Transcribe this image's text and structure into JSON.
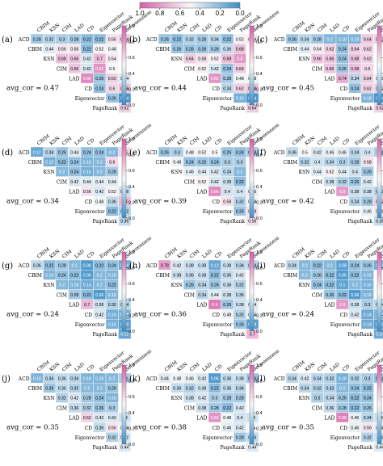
{
  "colors": {
    "high": "#d65ea8",
    "mid": "#f7f7f7",
    "low": "#3b8ec8"
  },
  "top_colorbar": {
    "ticks": [
      "1.0",
      "0.8",
      "0.6",
      "0.4",
      "0.2",
      "0.0"
    ]
  },
  "side_colorbar_ticks": [
    "1.0",
    "0.8",
    "0.6",
    "0.4",
    "0.2",
    "0.0"
  ],
  "chart_data": [
    {
      "label": "(a)",
      "avg_cor": "avg_cor = 0.47",
      "type": "heatmap",
      "columns": [
        "CBIM",
        "KSN",
        "CIM",
        "LAD",
        "CD",
        "Eigenvector",
        "PageRank",
        "Betweenness"
      ],
      "rows": [
        "ACD",
        "CBIM",
        "KSN",
        "CIM",
        "LAD",
        "CD",
        "Eigenvector",
        "PageRank"
      ],
      "values": [
        [
          0.28,
          0.32,
          0.3,
          0.28,
          0.22,
          0.22,
          0.56,
          0.64
        ],
        [
          null,
          0.44,
          0.56,
          0.56,
          0.22,
          0.52,
          0.48
        ],
        [
          null,
          null,
          0.68,
          0.66,
          0.42,
          0.7,
          0.54
        ],
        [
          null,
          null,
          null,
          0.66,
          0.42,
          0.82,
          0.5
        ],
        [
          null,
          null,
          null,
          null,
          0.86,
          0.26,
          0.62,
          0.44
        ],
        [
          null,
          null,
          null,
          null,
          null,
          0.24,
          0.6,
          0.66
        ],
        [
          null,
          null,
          null,
          null,
          null,
          null,
          0.26,
          0.04
        ],
        [
          null,
          null,
          null,
          null,
          null,
          null,
          null,
          0.62
        ]
      ]
    },
    {
      "label": "(b)",
      "avg_cor": "avg_cor = 0.44",
      "type": "heatmap",
      "columns": [
        "CBIM",
        "KSN",
        "CIM",
        "LAD",
        "CD",
        "Eigenvector",
        "PageRank",
        "Betweenness"
      ],
      "rows": [
        "ACD",
        "CBIM",
        "KSN",
        "CIM",
        "LAD",
        "CD",
        "Eigenvector",
        "PageRank"
      ],
      "values": [
        [
          0.26,
          0.22,
          0.32,
          0.28,
          0.34,
          0.22,
          0.52,
          0.54
        ],
        [
          null,
          0.26,
          0.26,
          0.26,
          0.28,
          0.36,
          0.68
        ],
        [
          null,
          null,
          0.64,
          0.58,
          0.52,
          0.68,
          0.8
        ],
        [
          null,
          null,
          null,
          0.52,
          0.42,
          0.24,
          0.64
        ],
        [
          null,
          null,
          null,
          null,
          0.82,
          0.28,
          0.48,
          0.48
        ],
        [
          null,
          null,
          null,
          null,
          null,
          0.34,
          0.62,
          0.68
        ],
        [
          null,
          null,
          null,
          null,
          null,
          null,
          0.16,
          0.04
        ],
        [
          null,
          null,
          null,
          null,
          null,
          null,
          null,
          0.64
        ]
      ]
    },
    {
      "label": "(c)",
      "avg_cor": "avg_cor = 0.45",
      "type": "heatmap",
      "columns": [
        "CBIM",
        "KSN",
        "CIM",
        "LAD",
        "CD",
        "Eigenvector",
        "PageRank",
        "Betweenness"
      ],
      "rows": [
        "ACD",
        "CBIM",
        "KSN",
        "CIM",
        "LAD",
        "CD",
        "Eigenvector",
        "PageRank"
      ],
      "values": [
        [
          0.26,
          0.34,
          0.28,
          0.2,
          0.18,
          0.18,
          0.64,
          0.62
        ],
        [
          null,
          0.44,
          0.54,
          0.62,
          0.24,
          0.64,
          0.62
        ],
        [
          null,
          null,
          0.66,
          0.66,
          0.24,
          0.68,
          0.62
        ],
        [
          null,
          null,
          null,
          0.66,
          0.26,
          0.68,
          0.6
        ],
        [
          null,
          null,
          null,
          null,
          0.74,
          0.34,
          0.64,
          0.48
        ],
        [
          null,
          null,
          null,
          null,
          null,
          0.24,
          0.62,
          0.62
        ],
        [
          null,
          null,
          null,
          null,
          null,
          null,
          0.18,
          0.04
        ],
        [
          null,
          null,
          null,
          null,
          null,
          null,
          null,
          0.62
        ]
      ]
    },
    {
      "label": "(d)",
      "avg_cor": "avg_cor = 0.34",
      "type": "heatmap",
      "columns": [
        "CBIM",
        "KSN",
        "CIM",
        "LAD",
        "CD",
        "Eigenvector",
        "PageRank",
        "Betweenness"
      ],
      "rows": [
        "ACD",
        "CBIM",
        "KSN",
        "CIM",
        "LAD",
        "CD",
        "Eigenvector",
        "PageRank"
      ],
      "values": [
        [
          0.12,
          0.34,
          0.26,
          0.44,
          0.24,
          0.24,
          0.2,
          0.6
        ],
        [
          null,
          0.16,
          0.22,
          0.24,
          0.18,
          0.2,
          0.6
        ],
        [
          null,
          null,
          0.2,
          0.24,
          0.16,
          0.2,
          0.28
        ],
        [
          null,
          null,
          null,
          0.42,
          0.44,
          0.44,
          0.44
        ],
        [
          null,
          null,
          null,
          null,
          0.56,
          0.42,
          0.52,
          0.38
        ],
        [
          null,
          null,
          null,
          null,
          null,
          0.48,
          0.36,
          0.7
        ],
        [
          null,
          null,
          null,
          null,
          null,
          null,
          0.22,
          0.32
        ],
        [
          null,
          null,
          null,
          null,
          null,
          null,
          null,
          0.36
        ]
      ]
    },
    {
      "label": "(e)",
      "avg_cor": "avg_cor = 0.39",
      "type": "heatmap",
      "columns": [
        "CBIM",
        "KSN",
        "CIM",
        "LAD",
        "CD",
        "Eigenvector",
        "PageRank",
        "Betweenness"
      ],
      "rows": [
        "ACD",
        "CBIM",
        "KSN",
        "CIM",
        "LAD",
        "CD",
        "Eigenvector",
        "PageRank"
      ],
      "values": [
        [
          0.26,
          0.3,
          0.48,
          0.52,
          0.5,
          0.26,
          0.24,
          0.28
        ],
        [
          null,
          0.48,
          0.24,
          0.26,
          0.24,
          0.3,
          0.3
        ],
        [
          null,
          null,
          0.46,
          0.44,
          0.42,
          0.34,
          0.2
        ],
        [
          null,
          null,
          null,
          0.52,
          0.42,
          0.38,
          0.22
        ],
        [
          null,
          null,
          null,
          null,
          0.86,
          0.4,
          0.4,
          0.46
        ],
        [
          null,
          null,
          null,
          null,
          null,
          0.58,
          0.32,
          0.48
        ],
        [
          null,
          null,
          null,
          null,
          null,
          null,
          0.26,
          0.58
        ],
        [
          null,
          null,
          null,
          null,
          null,
          null,
          null,
          0.58
        ]
      ]
    },
    {
      "label": "(f)",
      "avg_cor": "avg_cor = 0.42",
      "type": "heatmap",
      "columns": [
        "CBIM",
        "KSN",
        "CIM",
        "LAD",
        "CD",
        "Eigenvector",
        "PageRank",
        "Betweenness"
      ],
      "rows": [
        "ACD",
        "CBIM",
        "KSN",
        "CIM",
        "LAD",
        "CD",
        "Eigenvector",
        "PageRank"
      ],
      "values": [
        [
          0.36,
          0.5,
          0.42,
          0.46,
          0.46,
          0.34,
          0.4,
          0.3
        ],
        [
          null,
          0.32,
          0.4,
          0.34,
          0.3,
          0.28,
          0.58
        ],
        [
          null,
          null,
          0.44,
          0.52,
          0.44,
          0.4,
          0.26
        ],
        [
          null,
          null,
          null,
          0.38,
          0.32,
          0.26,
          0.42
        ],
        [
          null,
          null,
          null,
          null,
          0.8,
          0.38,
          0.38,
          0.32
        ],
        [
          null,
          null,
          null,
          null,
          null,
          0.34,
          0.28,
          0.62
        ],
        [
          null,
          null,
          null,
          null,
          null,
          null,
          0.46,
          0.56
        ],
        [
          null,
          null,
          null,
          null,
          null,
          null,
          null,
          0.36
        ]
      ]
    },
    {
      "label": "(g)",
      "avg_cor": "avg_cor = 0.24",
      "type": "heatmap",
      "columns": [
        "CBIM",
        "KSN",
        "CIM",
        "LAD",
        "CD",
        "Eigenvector",
        "PageRank",
        "Betweenness"
      ],
      "rows": [
        "ACD",
        "CBIM",
        "KSN",
        "CIM",
        "LAD",
        "CD",
        "Eigenvector",
        "PageRank"
      ],
      "values": [
        [
          0.36,
          0.22,
          0.28,
          0.2,
          0.06,
          0.22,
          0.24,
          0.14
        ],
        [
          null,
          0.18,
          0.24,
          0.22,
          0.06,
          0.2,
          0.18
        ],
        [
          null,
          null,
          0.2,
          0.18,
          0.14,
          0.2,
          0.22
        ],
        [
          null,
          null,
          null,
          0.28,
          0.22,
          0.06,
          0.18
        ],
        [
          null,
          null,
          null,
          null,
          0.7,
          0.38,
          0.32,
          0.34
        ],
        [
          null,
          null,
          null,
          null,
          null,
          0.42,
          0.16,
          0.18
        ],
        [
          null,
          null,
          null,
          null,
          null,
          null,
          0.16,
          0.08
        ],
        [
          null,
          null,
          null,
          null,
          null,
          null,
          null,
          0.12
        ]
      ]
    },
    {
      "label": "(h)",
      "avg_cor": "avg_cor = 0.36",
      "type": "heatmap",
      "columns": [
        "CBIM",
        "KSN",
        "CIM",
        "LAD",
        "CD",
        "Eigenvector",
        "PageRank",
        "Betweenness"
      ],
      "rows": [
        "ACD",
        "CBIM",
        "KSN",
        "CIM",
        "LAD",
        "CD",
        "Eigenvector",
        "PageRank"
      ],
      "values": [
        [
          0.78,
          0.42,
          0.38,
          0.38,
          0.12,
          0.38,
          0.34,
          0.34
        ],
        [
          null,
          0.38,
          0.36,
          0.38,
          0.22,
          0.36,
          0.42
        ],
        [
          null,
          null,
          0.26,
          0.34,
          0.26,
          0.38,
          0.32
        ],
        [
          null,
          null,
          null,
          0.34,
          0.44,
          0.38,
          0.36
        ],
        [
          null,
          null,
          null,
          null,
          0.9,
          0.26,
          0.38,
          0.44
        ],
        [
          null,
          null,
          null,
          null,
          null,
          0.48,
          0.32,
          0.46
        ],
        [
          null,
          null,
          null,
          null,
          null,
          null,
          0.26,
          0.08
        ],
        [
          null,
          null,
          null,
          null,
          null,
          null,
          null,
          0.7
        ]
      ]
    },
    {
      "label": "(i)",
      "avg_cor": "avg_cor = 0.24",
      "type": "heatmap",
      "columns": [
        "CBIM",
        "KSN",
        "CIM",
        "LAD",
        "CD",
        "Eigenvector",
        "PageRank",
        "Betweenness"
      ],
      "rows": [
        "ACD",
        "CBIM",
        "KSN",
        "CIM",
        "LAD",
        "CD",
        "Eigenvector",
        "PageRank"
      ],
      "values": [
        [
          0.34,
          0.2,
          0.22,
          0.2,
          0.08,
          0.24,
          0.26,
          0.14
        ],
        [
          null,
          0.2,
          0.26,
          0.22,
          0.06,
          0.22,
          0.18
        ],
        [
          null,
          null,
          0.24,
          0.22,
          0.1,
          0.2,
          0.16
        ],
        [
          null,
          null,
          null,
          0.26,
          0.22,
          0.06,
          0.18
        ],
        [
          null,
          null,
          null,
          null,
          0.8,
          0.38,
          0.3,
          0.34
        ],
        [
          null,
          null,
          null,
          null,
          null,
          0.42,
          0.14,
          0.2
        ],
        [
          null,
          null,
          null,
          null,
          null,
          null,
          0.14,
          0.08
        ],
        [
          null,
          null,
          null,
          null,
          null,
          null,
          null,
          0.14
        ]
      ]
    },
    {
      "label": "(j)",
      "avg_cor": "avg_cor = 0.35",
      "type": "heatmap",
      "columns": [
        "CBIM",
        "KSN",
        "CIM",
        "LAD",
        "CD",
        "Eigenvector",
        "PageRank",
        "Betweenness"
      ],
      "rows": [
        "ACD",
        "CBIM",
        "KSN",
        "CIM",
        "LAD",
        "CD",
        "Eigenvector",
        "PageRank"
      ],
      "values": [
        [
          0.18,
          0.34,
          0.36,
          0.34,
          0.18,
          0.18,
          0.2,
          0.3
        ],
        [
          null,
          0.26,
          0.36,
          0.32,
          0.2,
          0.2,
          0.26
        ],
        [
          null,
          null,
          0.32,
          0.42,
          0.28,
          0.24,
          0.18
        ],
        [
          null,
          null,
          null,
          0.36,
          0.32,
          0.26,
          0.3
        ],
        [
          null,
          null,
          null,
          null,
          0.62,
          0.42,
          0.42,
          0.4
        ],
        [
          null,
          null,
          null,
          null,
          null,
          0.36,
          0.56,
          0.46
        ],
        [
          null,
          null,
          null,
          null,
          null,
          null,
          0.32,
          0.42
        ],
        [
          null,
          null,
          null,
          null,
          null,
          null,
          null,
          0.44
        ]
      ]
    },
    {
      "label": "(k)",
      "avg_cor": "avg_cor = 0.38",
      "type": "heatmap",
      "columns": [
        "CBIM",
        "KSN",
        "CIM",
        "LAD",
        "CD",
        "Eigenvector",
        "PageRank",
        "Betweenness"
      ],
      "rows": [
        "ACD",
        "CBIM",
        "KSN",
        "CIM",
        "LAD",
        "CD",
        "Eigenvector",
        "PageRank"
      ],
      "values": [
        [
          0.44,
          0.48,
          0.46,
          0.42,
          0.06,
          0.36,
          0.38,
          0.26
        ],
        [
          null,
          0.36,
          0.32,
          0.38,
          0.22,
          0.36,
          0.34
        ],
        [
          null,
          null,
          0.38,
          0.42,
          0.3,
          0.28,
          0.28
        ],
        [
          null,
          null,
          null,
          0.38,
          0.28,
          0.22,
          0.42
        ],
        [
          null,
          null,
          null,
          null,
          0.82,
          0.48,
          0.4,
          0.4
        ],
        [
          null,
          null,
          null,
          null,
          null,
          0.46,
          0.42,
          0.5
        ],
        [
          null,
          null,
          null,
          null,
          null,
          null,
          0.28,
          0.36
        ],
        [
          null,
          null,
          null,
          null,
          null,
          null,
          null,
          0.44
        ]
      ]
    },
    {
      "label": "(l)",
      "avg_cor": "avg_cor = 0.35",
      "type": "heatmap",
      "columns": [
        "CBIM",
        "KSN",
        "CIM",
        "LAD",
        "CD",
        "Eigenvector",
        "PageRank",
        "Betweenness"
      ],
      "rows": [
        "ACD",
        "CBIM",
        "KSN",
        "CIM",
        "LAD",
        "CD",
        "Eigenvector",
        "PageRank"
      ],
      "values": [
        [
          0.34,
          0.42,
          0.34,
          0.32,
          0.16,
          0.32,
          0.3,
          0.24
        ],
        [
          null,
          0.34,
          0.32,
          0.32,
          0.2,
          0.24,
          0.22
        ],
        [
          null,
          null,
          0.3,
          0.34,
          0.26,
          0.22,
          0.24
        ],
        [
          null,
          null,
          null,
          0.36,
          0.28,
          0.22,
          0.26
        ],
        [
          null,
          null,
          null,
          null,
          0.88,
          0.46,
          0.34,
          0.4
        ],
        [
          null,
          null,
          null,
          null,
          null,
          0.46,
          0.56,
          0.46
        ],
        [
          null,
          null,
          null,
          null,
          null,
          null,
          0.32,
          0.4
        ],
        [
          null,
          null,
          null,
          null,
          null,
          null,
          null,
          0.44
        ]
      ]
    }
  ]
}
